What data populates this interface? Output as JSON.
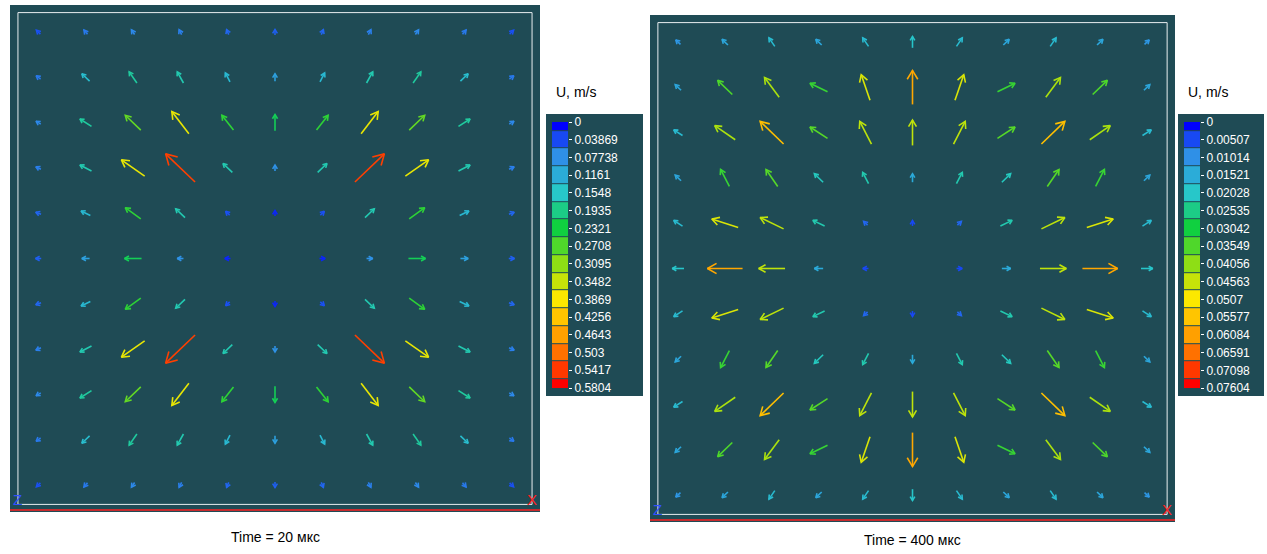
{
  "chart_data": [
    {
      "type": "vector_field",
      "caption": "Time = 20 мкс",
      "xlabel": "X",
      "zlabel": "Z",
      "tick_labels": false,
      "colorbar": {
        "title": "U, m/s",
        "range": [
          0,
          0.5804
        ],
        "ticks": [
          0,
          0.03869,
          0.07738,
          0.1161,
          0.1548,
          0.1935,
          0.2321,
          0.2708,
          0.3095,
          0.3482,
          0.3869,
          0.4256,
          0.4643,
          0.503,
          0.5417,
          0.5804
        ]
      },
      "u": [
        [
          -0.03,
          -0.04,
          -0.04,
          -0.03,
          -0.02,
          0,
          0.02,
          0.03,
          0.04,
          0.04,
          0.03
        ],
        [
          -0.05,
          -0.1,
          -0.1,
          -0.08,
          -0.06,
          0,
          0.06,
          0.08,
          0.1,
          0.1,
          0.05
        ],
        [
          -0.06,
          -0.15,
          -0.2,
          -0.22,
          -0.15,
          0,
          0.15,
          0.22,
          0.2,
          0.15,
          0.06
        ],
        [
          -0.06,
          -0.15,
          -0.3,
          -0.38,
          -0.12,
          0,
          0.12,
          0.38,
          0.3,
          0.15,
          0.06
        ],
        [
          -0.05,
          -0.12,
          -0.2,
          -0.12,
          -0.03,
          0,
          0.03,
          0.12,
          0.2,
          0.12,
          0.05
        ],
        [
          -0.05,
          -0.1,
          -0.22,
          -0.08,
          -0.02,
          0,
          0.02,
          0.08,
          0.22,
          0.1,
          0.05
        ],
        [
          -0.05,
          -0.12,
          -0.2,
          -0.12,
          -0.03,
          0,
          0.03,
          0.12,
          0.2,
          0.12,
          0.05
        ],
        [
          -0.06,
          -0.15,
          -0.3,
          -0.38,
          -0.12,
          0,
          0.12,
          0.38,
          0.3,
          0.15,
          0.06
        ],
        [
          -0.06,
          -0.15,
          -0.2,
          -0.22,
          -0.15,
          0,
          0.15,
          0.22,
          0.2,
          0.15,
          0.06
        ],
        [
          -0.05,
          -0.1,
          -0.1,
          -0.08,
          -0.06,
          0,
          0.06,
          0.08,
          0.1,
          0.1,
          0.05
        ],
        [
          -0.03,
          -0.04,
          -0.04,
          -0.03,
          -0.02,
          0,
          0.02,
          0.03,
          0.04,
          0.04,
          0.03
        ]
      ],
      "v": [
        [
          0.03,
          0.05,
          0.06,
          0.06,
          0.05,
          0.05,
          0.05,
          0.06,
          0.06,
          0.05,
          0.03
        ],
        [
          0.04,
          0.1,
          0.15,
          0.15,
          0.12,
          0.1,
          0.12,
          0.15,
          0.15,
          0.1,
          0.04
        ],
        [
          0.04,
          0.1,
          0.2,
          0.3,
          0.2,
          0.22,
          0.2,
          0.3,
          0.2,
          0.1,
          0.04
        ],
        [
          0.03,
          0.08,
          0.22,
          0.38,
          0.12,
          0.08,
          0.12,
          0.38,
          0.22,
          0.08,
          0.03
        ],
        [
          0.02,
          0.06,
          0.15,
          0.12,
          0.03,
          0.02,
          0.03,
          0.12,
          0.15,
          0.06,
          0.02
        ],
        [
          0,
          0,
          0,
          0,
          0,
          0,
          0,
          0,
          0,
          0,
          0
        ],
        [
          -0.02,
          -0.06,
          -0.15,
          -0.12,
          -0.03,
          -0.02,
          -0.03,
          -0.12,
          -0.15,
          -0.06,
          -0.02
        ],
        [
          -0.03,
          -0.08,
          -0.22,
          -0.38,
          -0.12,
          -0.08,
          -0.12,
          -0.38,
          -0.22,
          -0.08,
          -0.03
        ],
        [
          -0.04,
          -0.1,
          -0.2,
          -0.3,
          -0.2,
          -0.22,
          -0.2,
          -0.3,
          -0.2,
          -0.1,
          -0.04
        ],
        [
          -0.04,
          -0.1,
          -0.15,
          -0.15,
          -0.12,
          -0.1,
          -0.12,
          -0.15,
          -0.15,
          -0.1,
          -0.04
        ],
        [
          -0.03,
          -0.05,
          -0.06,
          -0.06,
          -0.05,
          -0.05,
          -0.05,
          -0.06,
          -0.06,
          -0.05,
          -0.03
        ]
      ]
    },
    {
      "type": "vector_field",
      "caption": "Time = 400 мкс",
      "xlabel": "X",
      "zlabel": "Z",
      "tick_labels": false,
      "colorbar": {
        "title": "U, m/s",
        "range": [
          0,
          0.07604
        ],
        "ticks": [
          0,
          0.00507,
          0.01014,
          0.01521,
          0.02028,
          0.02535,
          0.03042,
          0.03549,
          0.04056,
          0.04563,
          0.0507,
          0.05577,
          0.06084,
          0.06591,
          0.07098,
          0.07604
        ]
      },
      "u": [
        [
          -0.008,
          -0.01,
          -0.01,
          -0.01,
          -0.01,
          0,
          0.01,
          0.01,
          0.01,
          0.01,
          0.008
        ],
        [
          -0.01,
          -0.025,
          -0.025,
          -0.03,
          -0.015,
          0,
          0.015,
          0.03,
          0.025,
          0.025,
          0.01
        ],
        [
          -0.015,
          -0.035,
          -0.04,
          -0.03,
          -0.02,
          0,
          0.02,
          0.03,
          0.04,
          0.035,
          0.015
        ],
        [
          -0.01,
          -0.015,
          -0.02,
          -0.015,
          -0.01,
          0,
          0.01,
          0.015,
          0.02,
          0.015,
          0.01
        ],
        [
          -0.015,
          -0.045,
          -0.04,
          -0.02,
          -0.005,
          0,
          0.005,
          0.02,
          0.04,
          0.045,
          0.015
        ],
        [
          -0.02,
          -0.06,
          -0.045,
          -0.015,
          -0.005,
          0,
          0.005,
          0.015,
          0.045,
          0.06,
          0.02
        ],
        [
          -0.015,
          -0.045,
          -0.04,
          -0.02,
          -0.005,
          0,
          0.005,
          0.02,
          0.04,
          0.045,
          0.015
        ],
        [
          -0.01,
          -0.015,
          -0.02,
          -0.015,
          -0.01,
          0,
          0.01,
          0.015,
          0.02,
          0.015,
          0.01
        ],
        [
          -0.015,
          -0.035,
          -0.04,
          -0.03,
          -0.02,
          0,
          0.02,
          0.03,
          0.04,
          0.035,
          0.015
        ],
        [
          -0.01,
          -0.025,
          -0.025,
          -0.03,
          -0.015,
          0,
          0.015,
          0.03,
          0.025,
          0.025,
          0.01
        ],
        [
          -0.008,
          -0.01,
          -0.01,
          -0.01,
          -0.01,
          0,
          0.01,
          0.01,
          0.01,
          0.01,
          0.008
        ]
      ],
      "v": [
        [
          0.008,
          0.01,
          0.015,
          0.01,
          0.015,
          0.02,
          0.015,
          0.01,
          0.015,
          0.01,
          0.008
        ],
        [
          0.01,
          0.025,
          0.035,
          0.015,
          0.045,
          0.06,
          0.045,
          0.015,
          0.035,
          0.025,
          0.01
        ],
        [
          0.01,
          0.025,
          0.04,
          0.02,
          0.04,
          0.045,
          0.04,
          0.02,
          0.04,
          0.025,
          0.01
        ],
        [
          0.01,
          0.03,
          0.03,
          0.015,
          0.02,
          0.015,
          0.02,
          0.015,
          0.03,
          0.03,
          0.01
        ],
        [
          0.01,
          0.015,
          0.02,
          0.01,
          0.005,
          0.005,
          0.005,
          0.01,
          0.02,
          0.015,
          0.01
        ],
        [
          0,
          0,
          0,
          0,
          0,
          0,
          0,
          0,
          0,
          0,
          0
        ],
        [
          -0.01,
          -0.015,
          -0.02,
          -0.01,
          -0.005,
          -0.005,
          -0.005,
          -0.01,
          -0.02,
          -0.015,
          -0.01
        ],
        [
          -0.01,
          -0.03,
          -0.03,
          -0.015,
          -0.02,
          -0.015,
          -0.02,
          -0.015,
          -0.03,
          -0.03,
          -0.01
        ],
        [
          -0.01,
          -0.025,
          -0.04,
          -0.02,
          -0.04,
          -0.045,
          -0.04,
          -0.02,
          -0.04,
          -0.025,
          -0.01
        ],
        [
          -0.01,
          -0.025,
          -0.035,
          -0.015,
          -0.045,
          -0.06,
          -0.045,
          -0.015,
          -0.035,
          -0.025,
          -0.01
        ],
        [
          -0.008,
          -0.01,
          -0.015,
          -0.01,
          -0.015,
          -0.02,
          -0.015,
          -0.01,
          -0.015,
          -0.01,
          -0.008
        ]
      ]
    }
  ]
}
